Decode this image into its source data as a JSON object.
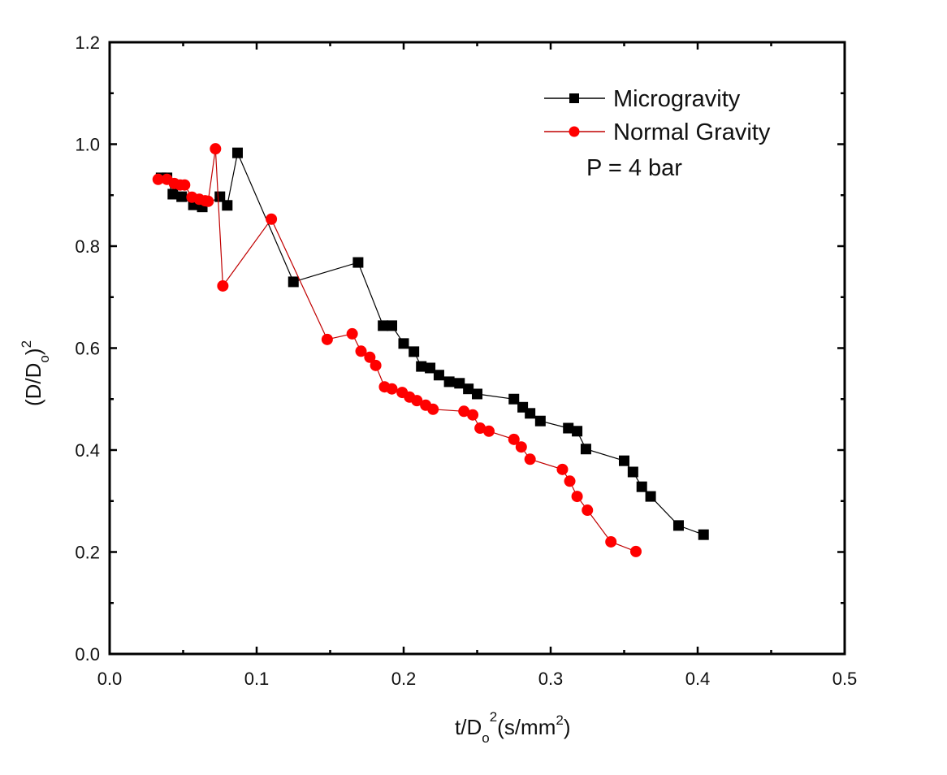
{
  "chart_data": {
    "type": "scatter",
    "title": "",
    "xlabel": "t/D_o^2(s/mm^2)",
    "xlabel_parts": {
      "base": "t/D",
      "sub": "o",
      "sup": "2",
      "unit_open": "(s/mm",
      "unit_sup": "2",
      "unit_close": ")"
    },
    "ylabel": "(D/D_o)^2",
    "ylabel_parts": {
      "open": "(D/D",
      "sub": "o",
      "close": ")",
      "sup": "2"
    },
    "xlim": [
      0.0,
      0.5
    ],
    "ylim": [
      0.0,
      1.2
    ],
    "xticks": [
      0.0,
      0.1,
      0.2,
      0.3,
      0.4,
      0.5
    ],
    "xtick_labels": [
      "0.0",
      "0.1",
      "0.2",
      "0.3",
      "0.4",
      "0.5"
    ],
    "yticks": [
      0.0,
      0.2,
      0.4,
      0.6,
      0.8,
      1.0,
      1.2
    ],
    "ytick_labels": [
      "0.0",
      "0.2",
      "0.4",
      "0.6",
      "0.8",
      "1.0",
      "1.2"
    ],
    "grid": false,
    "legend_position": "top-right",
    "annotation": "P = 4 bar",
    "series": [
      {
        "name": "Microgravity",
        "marker": "square",
        "marker_color": "#000000",
        "line_color": "#000000",
        "x": [
          0.035,
          0.039,
          0.043,
          0.049,
          0.057,
          0.063,
          0.075,
          0.08,
          0.087,
          0.125,
          0.169,
          0.186,
          0.192,
          0.2,
          0.207,
          0.212,
          0.218,
          0.224,
          0.231,
          0.238,
          0.244,
          0.25,
          0.275,
          0.281,
          0.286,
          0.293,
          0.312,
          0.318,
          0.324,
          0.35,
          0.356,
          0.362,
          0.368,
          0.387,
          0.404
        ],
        "y": [
          0.934,
          0.934,
          0.902,
          0.897,
          0.881,
          0.877,
          0.897,
          0.88,
          0.983,
          0.73,
          0.768,
          0.644,
          0.644,
          0.609,
          0.593,
          0.564,
          0.561,
          0.547,
          0.534,
          0.531,
          0.52,
          0.51,
          0.5,
          0.484,
          0.472,
          0.457,
          0.443,
          0.437,
          0.402,
          0.379,
          0.357,
          0.328,
          0.309,
          0.252,
          0.234
        ]
      },
      {
        "name": "Normal Gravity",
        "marker": "circle",
        "marker_color": "#ff0000",
        "line_color": "#c00000",
        "x": [
          0.033,
          0.039,
          0.044,
          0.048,
          0.051,
          0.056,
          0.061,
          0.065,
          0.067,
          0.072,
          0.077,
          0.11,
          0.148,
          0.165,
          0.171,
          0.177,
          0.181,
          0.187,
          0.192,
          0.199,
          0.204,
          0.209,
          0.215,
          0.22,
          0.241,
          0.247,
          0.252,
          0.258,
          0.275,
          0.28,
          0.286,
          0.308,
          0.313,
          0.318,
          0.325,
          0.341,
          0.358
        ],
        "y": [
          0.931,
          0.931,
          0.923,
          0.92,
          0.92,
          0.896,
          0.892,
          0.889,
          0.888,
          0.991,
          0.722,
          0.853,
          0.617,
          0.628,
          0.594,
          0.582,
          0.566,
          0.524,
          0.52,
          0.513,
          0.504,
          0.497,
          0.488,
          0.48,
          0.476,
          0.469,
          0.443,
          0.437,
          0.421,
          0.406,
          0.382,
          0.362,
          0.339,
          0.309,
          0.282,
          0.22,
          0.201
        ]
      }
    ]
  }
}
